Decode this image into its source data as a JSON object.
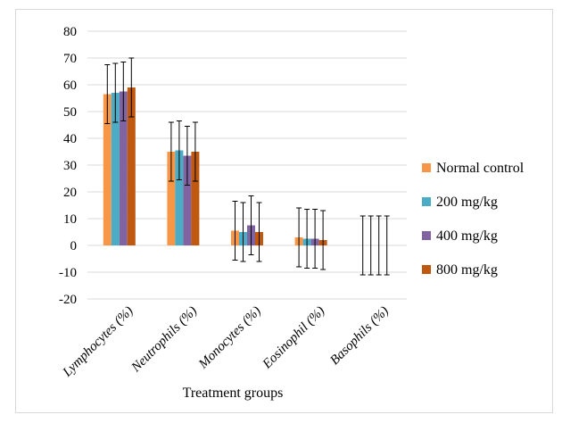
{
  "chart_data": {
    "type": "bar",
    "title": "",
    "xlabel": "Treatment groups",
    "ylabel": "",
    "ylim": [
      -20,
      80
    ],
    "yticks": [
      -20,
      -10,
      0,
      10,
      20,
      30,
      40,
      50,
      60,
      70,
      80
    ],
    "grid": true,
    "legend_position": "right",
    "categories": [
      "Lymphocytes (%)",
      "Neutrophils (%)",
      "Monocytes (%)",
      "Eosinophil (%)",
      "Basophils (%)"
    ],
    "series": [
      {
        "name": "Normal control",
        "color": "#f79646",
        "values": [
          56.5,
          35,
          5.5,
          3,
          0
        ],
        "errors": [
          11,
          11,
          11,
          11,
          11
        ]
      },
      {
        "name": "200 mg/kg",
        "color": "#4bacc6",
        "values": [
          57,
          35.5,
          5,
          2.5,
          0
        ],
        "errors": [
          11,
          11,
          11,
          11,
          11
        ]
      },
      {
        "name": "400 mg/kg",
        "color": "#8064a2",
        "values": [
          57.5,
          33.5,
          7.5,
          2.5,
          0
        ],
        "errors": [
          11,
          11,
          11,
          11,
          11
        ]
      },
      {
        "name": "800 mg/kg",
        "color": "#c0580f",
        "values": [
          59,
          35,
          5,
          2,
          0
        ],
        "errors": [
          11,
          11,
          11,
          11,
          11
        ]
      }
    ]
  }
}
